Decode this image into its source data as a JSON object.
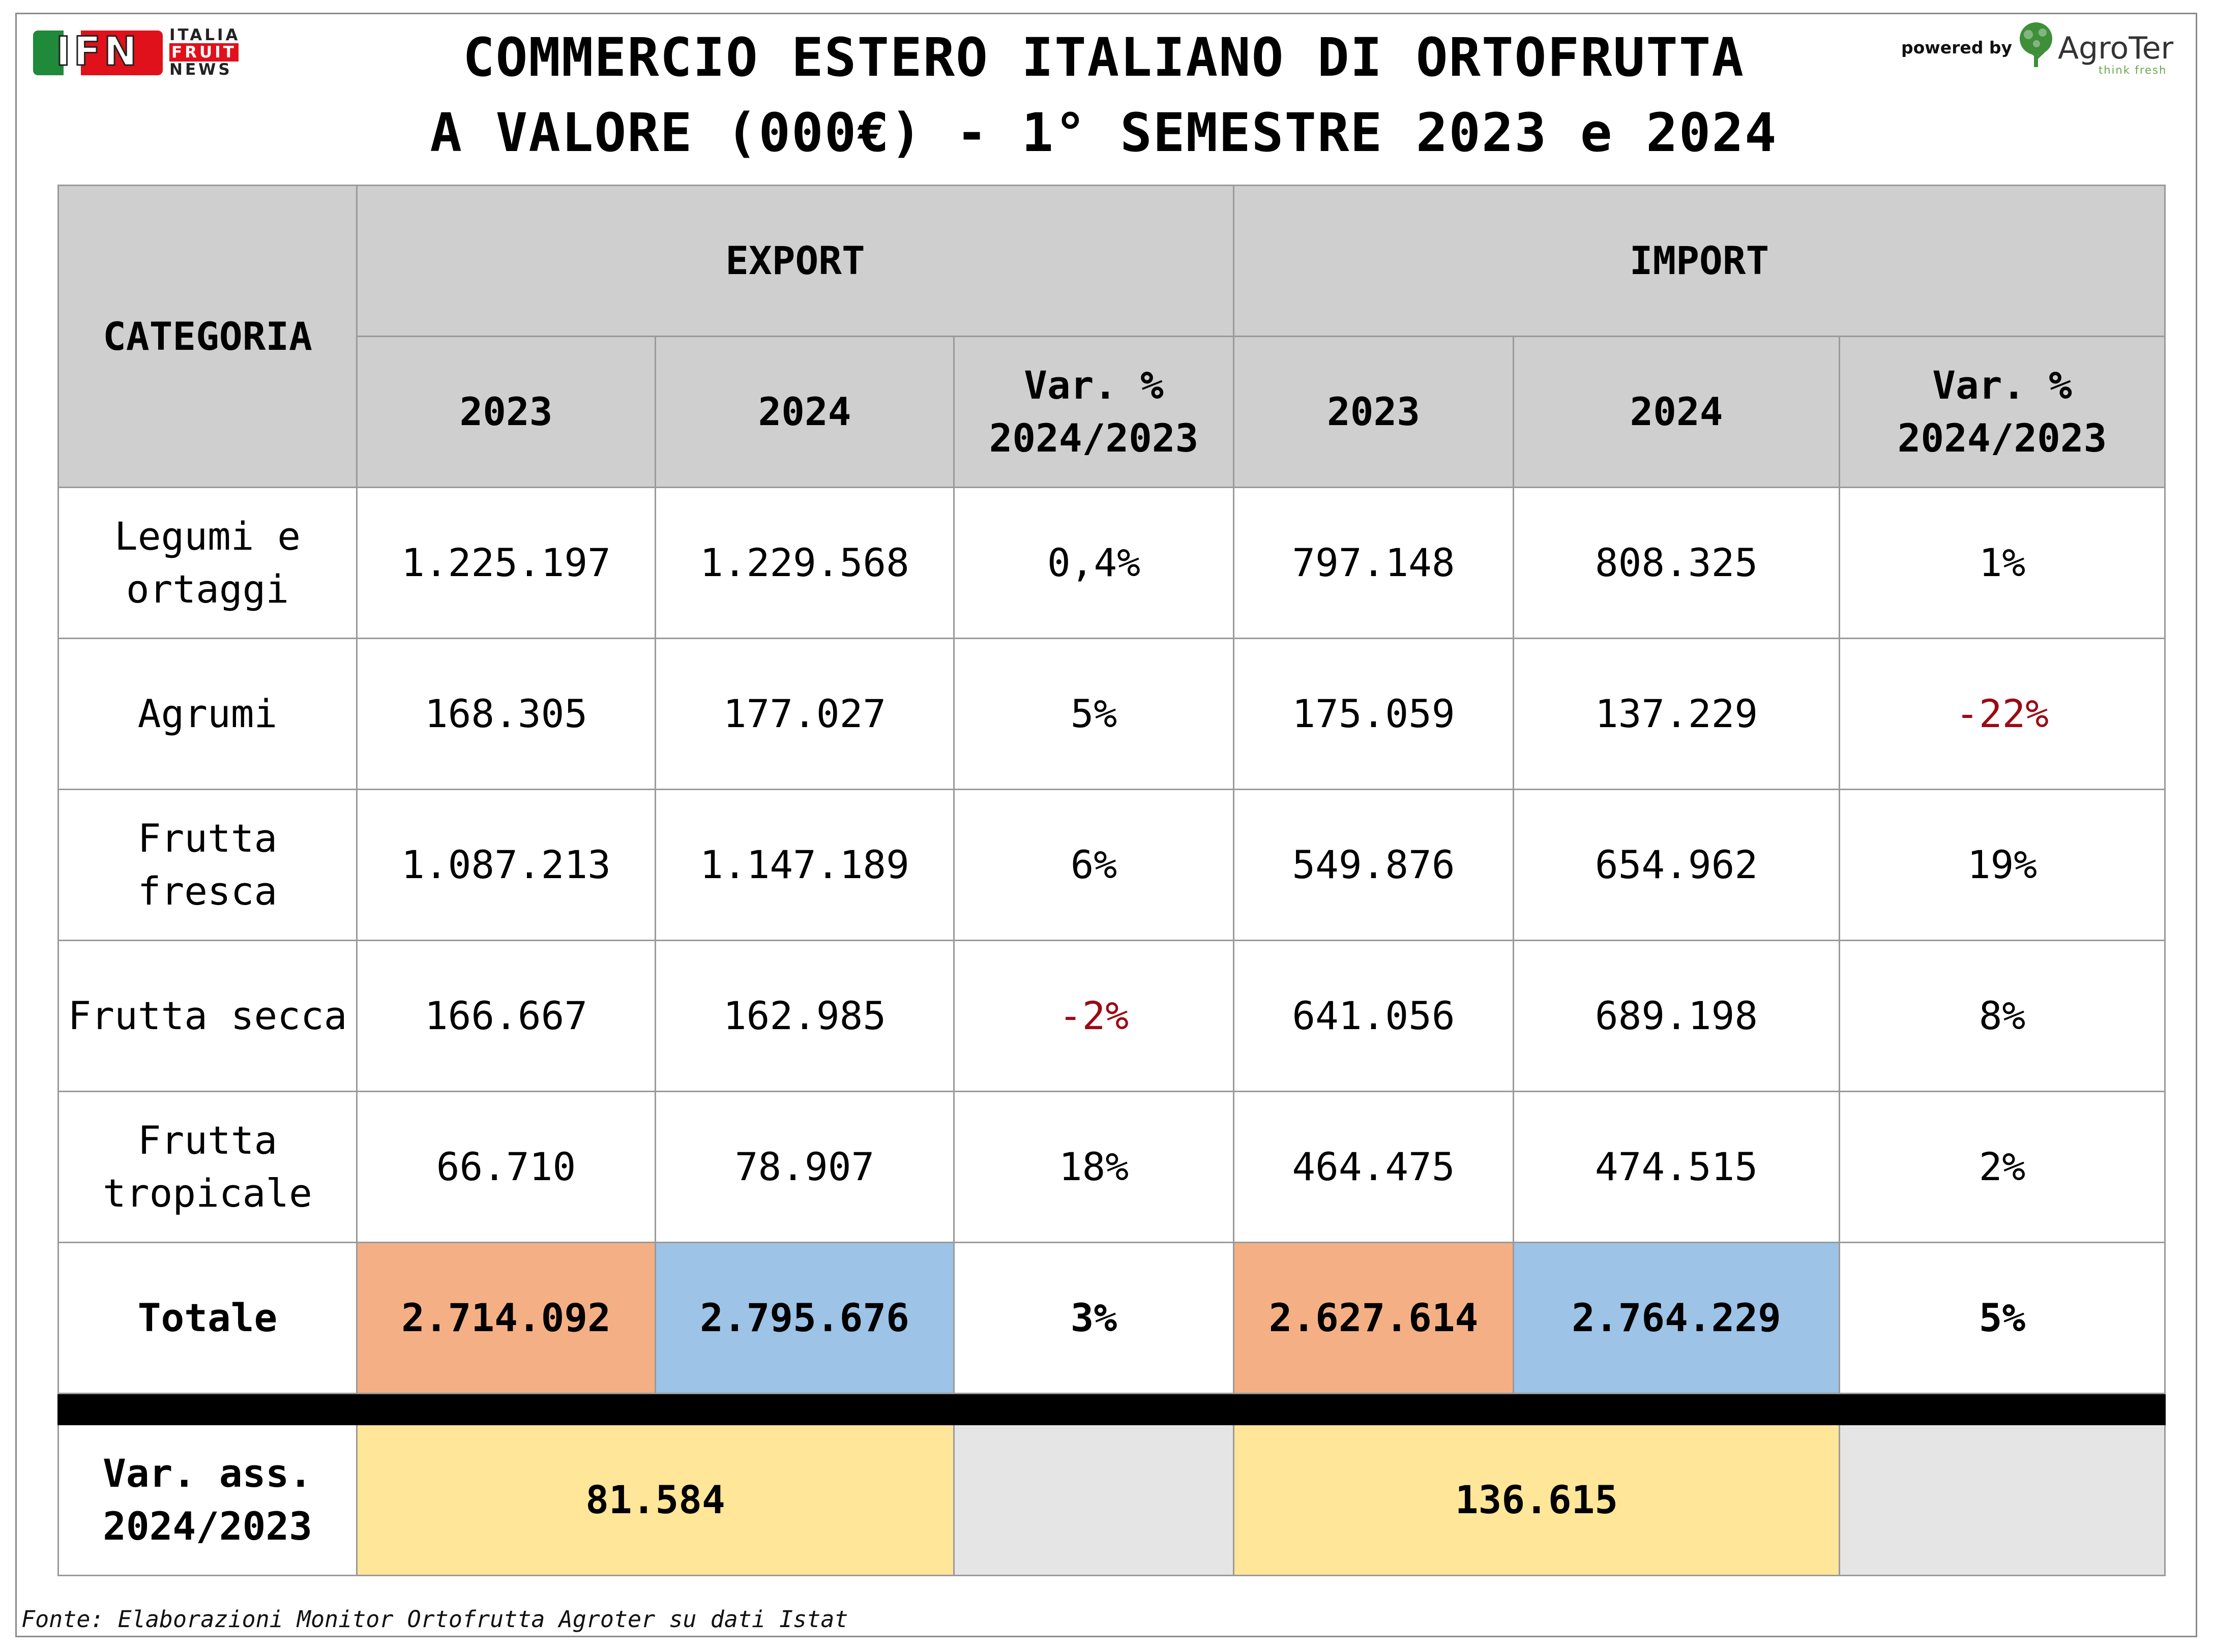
{
  "brand": {
    "ifn_letters": "IFN",
    "ifn_line1": "ITALIA",
    "ifn_line2": "FRUIT",
    "ifn_line3": "NEWS",
    "powered_by": "powered by",
    "agroter_name": "AgroTer",
    "agroter_tagline": "think fresh"
  },
  "title": {
    "line1": "COMMERCIO ESTERO ITALIANO DI ORTOFRUTTA",
    "line2": "A VALORE (000€) - 1° SEMESTRE 2023 e 2024"
  },
  "colors": {
    "neg": "#9b0a14",
    "y2023": "#f4b084",
    "y2024": "#9dc3e6",
    "var_ass": "#ffe699",
    "header": "#d0cfcf"
  },
  "chart_data": {
    "type": "table",
    "header": {
      "categoria": "CATEGORIA",
      "export": "EXPORT",
      "import": "IMPORT",
      "y2023": "2023",
      "y2024": "2024",
      "var_line1": "Var. %",
      "var_line2": "2024/2023"
    },
    "rows": [
      {
        "cat_l1": "Legumi e",
        "cat_l2": "ortaggi",
        "exp2023": "1.225.197",
        "exp2024": "1.229.568",
        "expvar": "0,4%",
        "imp2023": "797.148",
        "imp2024": "808.325",
        "impvar": "1%"
      },
      {
        "cat_l1": "Agrumi",
        "cat_l2": "",
        "exp2023": "168.305",
        "exp2024": "177.027",
        "expvar": "5%",
        "imp2023": "175.059",
        "imp2024": "137.229",
        "impvar": "-22%"
      },
      {
        "cat_l1": "Frutta",
        "cat_l2": "fresca",
        "exp2023": "1.087.213",
        "exp2024": "1.147.189",
        "expvar": "6%",
        "imp2023": "549.876",
        "imp2024": "654.962",
        "impvar": "19%"
      },
      {
        "cat_l1": "Frutta secca",
        "cat_l2": "",
        "exp2023": "166.667",
        "exp2024": "162.985",
        "expvar": "-2%",
        "imp2023": "641.056",
        "imp2024": "689.198",
        "impvar": "8%"
      },
      {
        "cat_l1": "Frutta",
        "cat_l2": "tropicale",
        "exp2023": "66.710",
        "exp2024": "78.907",
        "expvar": "18%",
        "imp2023": "464.475",
        "imp2024": "474.515",
        "impvar": "2%"
      }
    ],
    "total": {
      "label": "Totale",
      "exp2023": "2.714.092",
      "exp2024": "2.795.676",
      "expvar": "3%",
      "imp2023": "2.627.614",
      "imp2024": "2.764.229",
      "impvar": "5%"
    },
    "var_ass": {
      "label_l1": "Var. ass.",
      "label_l2": "2024/2023",
      "export": "81.584",
      "import": "136.615"
    }
  },
  "source": "Fonte: Elaborazioni Monitor Ortofrutta Agroter su dati Istat"
}
